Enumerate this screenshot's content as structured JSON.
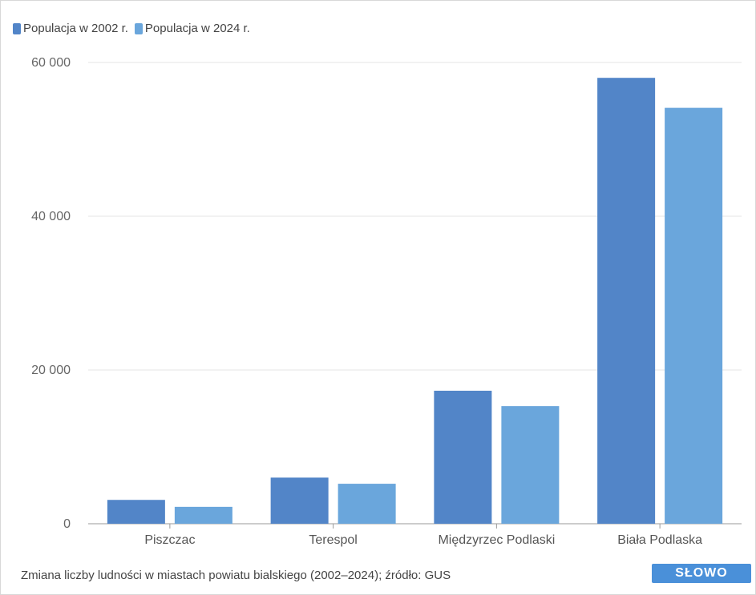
{
  "colors": {
    "series_2002": "#5285c8",
    "series_2024": "#6aa6dc",
    "grid": "#e6e6e6",
    "axis": "#9a9a9a"
  },
  "legend": [
    {
      "label": "Populacja w 2002 r.",
      "color": "#5285c8"
    },
    {
      "label": "Populacja w 2024 r.",
      "color": "#6aa6dc"
    }
  ],
  "footer_text": "Zmiana liczby ludności w miastach powiatu bialskiego (2002–2024); źródło: GUS",
  "logo_text": "SŁOWO",
  "chart_data": {
    "type": "bar",
    "categories": [
      "Piszczac",
      "Terespol",
      "Międzyrzec Podlaski",
      "Biała Podlaska"
    ],
    "series": [
      {
        "name": "Populacja w 2002 r.",
        "values": [
          3100,
          6000,
          17300,
          58000
        ]
      },
      {
        "name": "Populacja w 2024 r.",
        "values": [
          2200,
          5200,
          15300,
          54100
        ]
      }
    ],
    "ylim": [
      0,
      60000
    ],
    "yticks": [
      0,
      20000,
      40000,
      60000
    ],
    "ytick_labels": [
      "0",
      "20 000",
      "40 000",
      "60 000"
    ],
    "grid": true,
    "legend_position": "top-left",
    "xlabel": "",
    "ylabel": ""
  }
}
